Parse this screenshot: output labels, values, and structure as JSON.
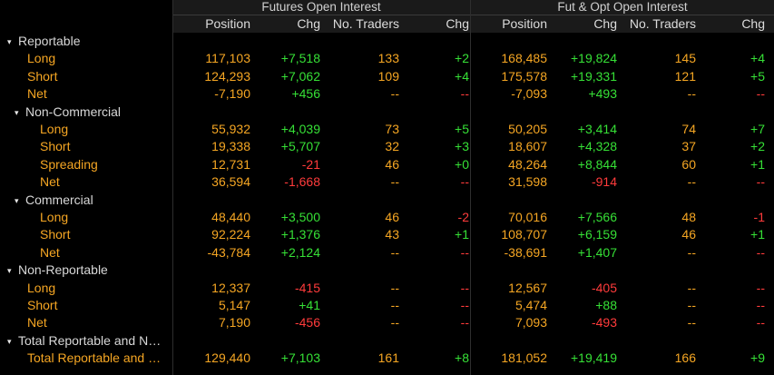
{
  "header": {
    "group_futures": "Futures Open Interest",
    "group_fut_opt": "Fut & Opt Open Interest",
    "columns": [
      "Position",
      "Chg",
      "No. Traders",
      "Chg",
      "Position",
      "Chg",
      "No. Traders",
      "Chg"
    ]
  },
  "rows": [
    {
      "label": "Reportable",
      "kind": "section",
      "indent": 0,
      "toggle": "▾",
      "cells": []
    },
    {
      "label": "Long",
      "kind": "leaf",
      "indent": 1,
      "cells": [
        "117,103",
        "+7,518",
        "133",
        "+2",
        "168,485",
        "+19,824",
        "145",
        "+4"
      ]
    },
    {
      "label": "Short",
      "kind": "leaf",
      "indent": 1,
      "cells": [
        "124,293",
        "+7,062",
        "109",
        "+4",
        "175,578",
        "+19,331",
        "121",
        "+5"
      ]
    },
    {
      "label": "Net",
      "kind": "leaf",
      "indent": 1,
      "cells": [
        "-7,190",
        "+456",
        "--",
        "--",
        "-7,093",
        "+493",
        "--",
        "--"
      ]
    },
    {
      "label": "Non-Commercial",
      "kind": "section",
      "indent": 1,
      "toggle": "▾",
      "cells": []
    },
    {
      "label": "Long",
      "kind": "leaf",
      "indent": 2,
      "cells": [
        "55,932",
        "+4,039",
        "73",
        "+5",
        "50,205",
        "+3,414",
        "74",
        "+7"
      ]
    },
    {
      "label": "Short",
      "kind": "leaf",
      "indent": 2,
      "cells": [
        "19,338",
        "+5,707",
        "32",
        "+3",
        "18,607",
        "+4,328",
        "37",
        "+2"
      ]
    },
    {
      "label": "Spreading",
      "kind": "leaf",
      "indent": 2,
      "cells": [
        "12,731",
        "-21",
        "46",
        "+0",
        "48,264",
        "+8,844",
        "60",
        "+1"
      ]
    },
    {
      "label": "Net",
      "kind": "leaf",
      "indent": 2,
      "cells": [
        "36,594",
        "-1,668",
        "--",
        "--",
        "31,598",
        "-914",
        "--",
        "--"
      ]
    },
    {
      "label": "Commercial",
      "kind": "section",
      "indent": 1,
      "toggle": "▾",
      "cells": []
    },
    {
      "label": "Long",
      "kind": "leaf",
      "indent": 2,
      "cells": [
        "48,440",
        "+3,500",
        "46",
        "-2",
        "70,016",
        "+7,566",
        "48",
        "-1"
      ]
    },
    {
      "label": "Short",
      "kind": "leaf",
      "indent": 2,
      "cells": [
        "92,224",
        "+1,376",
        "43",
        "+1",
        "108,707",
        "+6,159",
        "46",
        "+1"
      ]
    },
    {
      "label": "Net",
      "kind": "leaf",
      "indent": 2,
      "cells": [
        "-43,784",
        "+2,124",
        "--",
        "--",
        "-38,691",
        "+1,407",
        "--",
        "--"
      ]
    },
    {
      "label": "Non-Reportable",
      "kind": "section",
      "indent": 0,
      "toggle": "▾",
      "cells": []
    },
    {
      "label": "Long",
      "kind": "leaf",
      "indent": 1,
      "cells": [
        "12,337",
        "-415",
        "--",
        "--",
        "12,567",
        "-405",
        "--",
        "--"
      ]
    },
    {
      "label": "Short",
      "kind": "leaf",
      "indent": 1,
      "cells": [
        "5,147",
        "+41",
        "--",
        "--",
        "5,474",
        "+88",
        "--",
        "--"
      ]
    },
    {
      "label": "Net",
      "kind": "leaf",
      "indent": 1,
      "cells": [
        "7,190",
        "-456",
        "--",
        "--",
        "7,093",
        "-493",
        "--",
        "--"
      ]
    },
    {
      "label": "Total Reportable and N…",
      "kind": "section",
      "indent": 0,
      "toggle": "▾",
      "cells": []
    },
    {
      "label": "Total Reportable and …",
      "kind": "leaf",
      "indent": 1,
      "cells": [
        "129,440",
        "+7,103",
        "161",
        "+8",
        "181,052",
        "+19,419",
        "166",
        "+9"
      ]
    }
  ],
  "colors": {
    "label_orange": "#f5a623",
    "positive": "#36e036",
    "negative": "#ff3b3b",
    "neutral": "#f5a623",
    "background": "#000000"
  }
}
